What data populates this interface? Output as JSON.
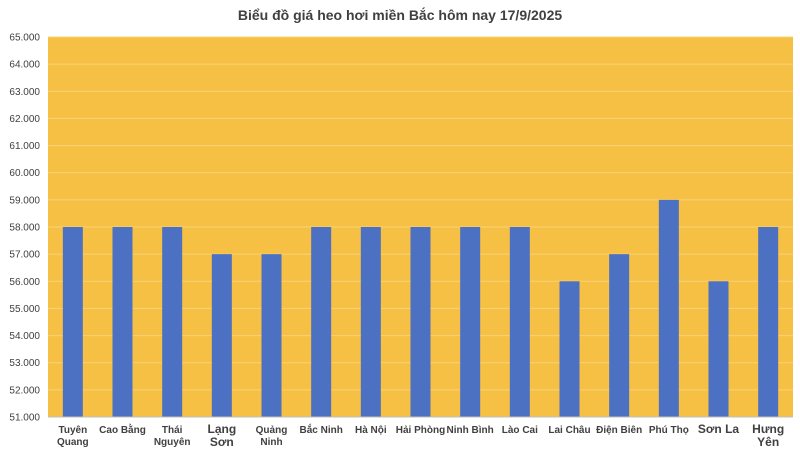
{
  "chart_data": {
    "type": "bar",
    "title": "Biểu đồ giá heo hơi miền Bắc hôm nay 17/9/2025",
    "xlabel": "",
    "ylabel": "",
    "ylim": [
      51000,
      65000
    ],
    "ytick_step": 1000,
    "ytick_labels": [
      "51.000",
      "52.000",
      "53.000",
      "54.000",
      "55.000",
      "56.000",
      "57.000",
      "58.000",
      "59.000",
      "60.000",
      "61.000",
      "62.000",
      "63.000",
      "64.000",
      "65.000"
    ],
    "categories": [
      [
        "Tuyên",
        "Quang"
      ],
      [
        "Cao Bằng"
      ],
      [
        "Thái",
        "Nguyên"
      ],
      [
        "Lạng",
        "Sơn"
      ],
      [
        "Quảng",
        "Ninh"
      ],
      [
        "Bắc Ninh"
      ],
      [
        "Hà Nội"
      ],
      [
        "Hải Phòng"
      ],
      [
        "Ninh Bình"
      ],
      [
        "Lào Cai"
      ],
      [
        "Lai Châu"
      ],
      [
        "Điện Biên"
      ],
      [
        "Phú Thọ"
      ],
      [
        "Sơn La"
      ],
      [
        "Hưng",
        "Yên"
      ]
    ],
    "large_label_indices": [
      3,
      13,
      14
    ],
    "values": [
      58000,
      58000,
      58000,
      57000,
      57000,
      58000,
      58000,
      58000,
      58000,
      58000,
      56000,
      57000,
      59000,
      56000,
      58000
    ],
    "grid": true,
    "legend": "none",
    "colors": {
      "plot_background": "#F5C043",
      "bar": "#4D71C2",
      "gridline": "#F7D37A",
      "text": "#404040",
      "axis": "#BFBFBF"
    }
  }
}
